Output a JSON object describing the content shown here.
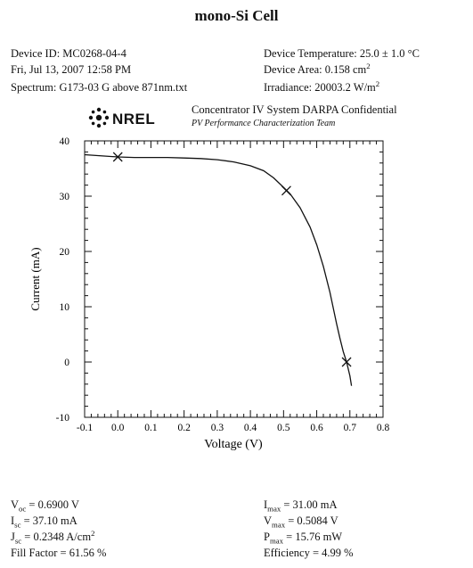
{
  "header": {
    "title": "mono-Si Cell",
    "device_id": "Device ID: MC0268-04-4",
    "datetime": "Fri, Jul 13, 2007 12:58 PM",
    "spectrum": "Spectrum: G173-03 G above 871nm.txt",
    "temperature": "Device Temperature: 25.0 ± 1.0 °C",
    "area": "Device Area: 0.158 cm",
    "area_sup": "2",
    "irradiance": "Irradiance: 20003.2 W/m",
    "irradiance_sup": "2"
  },
  "org": {
    "logo_text": "NREL",
    "line1": "Concentrator IV System DARPA Confidential",
    "line2": "PV Performance Characterization Team"
  },
  "chart_data": {
    "type": "line",
    "title": "",
    "xlabel": "Voltage (V)",
    "ylabel": "Current (mA)",
    "xlim": [
      -0.1,
      0.8
    ],
    "ylim": [
      -10,
      40
    ],
    "x_ticks": [
      "-0.1",
      "0.0",
      "0.1",
      "0.2",
      "0.3",
      "0.4",
      "0.5",
      "0.6",
      "0.7",
      "0.8"
    ],
    "y_ticks": [
      "-10",
      "0",
      "10",
      "20",
      "30",
      "40"
    ],
    "grid": false,
    "series": [
      {
        "x": [
          -0.1,
          0.0,
          0.05,
          0.1,
          0.15,
          0.2,
          0.25,
          0.3,
          0.35,
          0.4,
          0.44,
          0.47,
          0.5,
          0.52,
          0.55,
          0.58,
          0.6,
          0.62,
          0.64,
          0.66,
          0.67,
          0.68,
          0.69,
          0.7,
          0.705
        ],
        "y": [
          37.5,
          37.1,
          37.0,
          37.0,
          37.0,
          36.9,
          36.8,
          36.6,
          36.2,
          35.5,
          34.6,
          33.3,
          31.6,
          30.4,
          27.9,
          24.4,
          21.2,
          17.3,
          12.6,
          6.9,
          4.3,
          1.9,
          0.0,
          -2.5,
          -4.3
        ]
      }
    ],
    "markers": [
      {
        "x": 0.0,
        "y": 37.1
      },
      {
        "x": 0.5084,
        "y": 31.0
      },
      {
        "x": 0.69,
        "y": 0.0
      }
    ]
  },
  "results": {
    "voc_sym": "V",
    "voc_sub": "oc",
    "voc_val": " = 0.6900 V",
    "isc_sym": "I",
    "isc_sub": "sc",
    "isc_val": " = 37.10 mA",
    "jsc_sym": "J",
    "jsc_sub": "sc",
    "jsc_val": " = 0.2348 A/cm",
    "jsc_sup": "2",
    "ff": "Fill Factor = 61.56 %",
    "imax_sym": "I",
    "imax_sub": "max",
    "imax_val": " = 31.00 mA",
    "vmax_sym": "V",
    "vmax_sub": "max",
    "vmax_val": " = 0.5084 V",
    "pmax_sym": "P",
    "pmax_sub": "max",
    "pmax_val": " = 15.76 mW",
    "eff": "Efficiency = 4.99 %"
  }
}
